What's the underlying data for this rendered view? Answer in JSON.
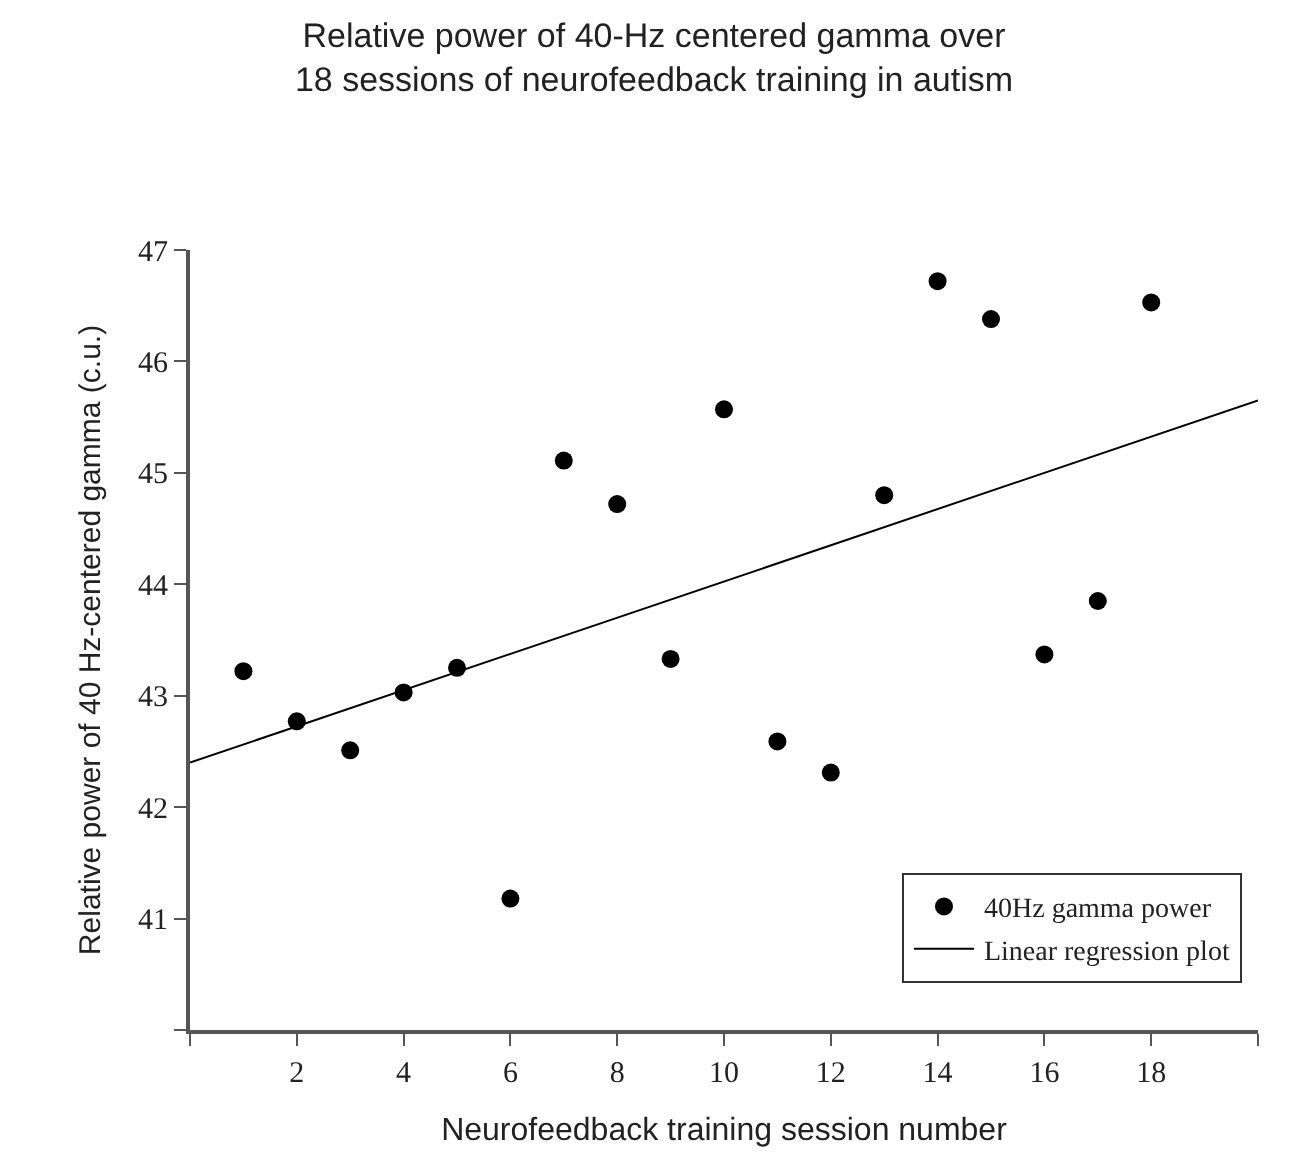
{
  "chart_data": {
    "type": "scatter",
    "title": "Relative power of 40-Hz centered gamma over\n18 sessions of neurofeedback training in autism",
    "xlabel": "Neurofeedback training session number",
    "ylabel": "Relative power of 40 Hz-centered gamma (c.u.)",
    "x": [
      1,
      2,
      3,
      4,
      5,
      6,
      7,
      8,
      9,
      10,
      11,
      12,
      13,
      14,
      15,
      16,
      17,
      18
    ],
    "series": [
      {
        "name": "40Hz gamma power",
        "color": "#000000",
        "marker": "circle",
        "values": [
          43.22,
          42.77,
          42.51,
          43.03,
          43.25,
          41.18,
          45.11,
          44.72,
          43.33,
          45.57,
          42.59,
          42.31,
          44.8,
          46.72,
          46.38,
          43.37,
          43.85,
          46.53
        ]
      },
      {
        "name": "Linear regression plot",
        "type": "line",
        "color": "#000000",
        "marker": "none",
        "x": [
          0,
          20
        ],
        "values": [
          42.4,
          45.65
        ]
      }
    ],
    "xlim": [
      0,
      20
    ],
    "xticks": [
      {
        "value": 0,
        "label": null
      },
      2,
      4,
      6,
      8,
      10,
      12,
      14,
      16,
      18,
      {
        "value": 20,
        "label": null
      }
    ],
    "ylim": [
      40,
      47
    ],
    "yticks": [
      {
        "value": 40,
        "label": null
      },
      41,
      42,
      43,
      44,
      45,
      46,
      47
    ],
    "grid": false,
    "legend": "bottom right"
  }
}
